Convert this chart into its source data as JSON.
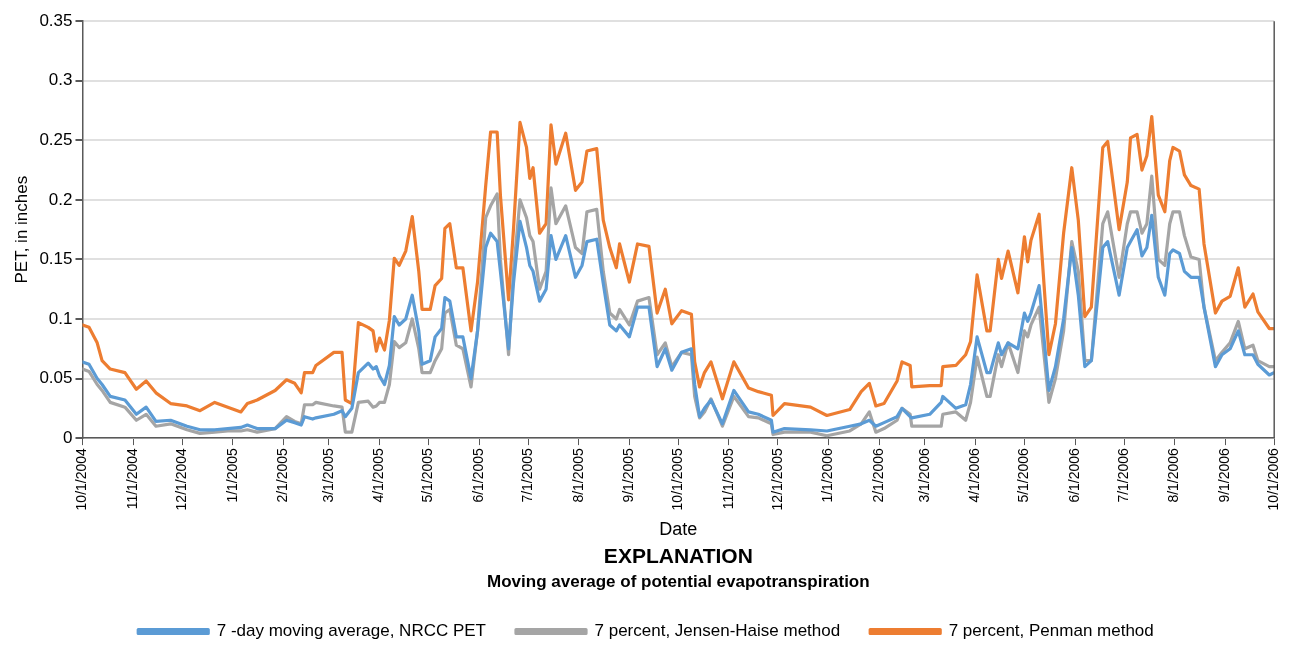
{
  "chart_data": {
    "type": "line",
    "xlabel": "Date",
    "ylabel": "PET, in inches",
    "legend_title": "EXPLANATION",
    "annotations": [
      "Moving average of potential evapotranspiration"
    ],
    "x": [
      "2004-10-01",
      "2004-10-05",
      "2004-10-10",
      "2004-10-13",
      "2004-10-18",
      "2004-10-27",
      "2004-11-03",
      "2004-11-09",
      "2004-11-15",
      "2004-11-24",
      "2004-12-04",
      "2004-12-12",
      "2004-12-21",
      "2004-12-29",
      "2005-01-06",
      "2005-01-10",
      "2005-01-16",
      "2005-01-27",
      "2005-02-03",
      "2005-02-08",
      "2005-02-12",
      "2005-02-14",
      "2005-02-19",
      "2005-02-21",
      "2005-03-04",
      "2005-03-09",
      "2005-03-11",
      "2005-03-15",
      "2005-03-19",
      "2005-03-25",
      "2005-03-28",
      "2005-03-30",
      "2005-04-01",
      "2005-04-04",
      "2005-04-07",
      "2005-04-10",
      "2005-04-13",
      "2005-04-17",
      "2005-04-21",
      "2005-04-25",
      "2005-04-27",
      "2005-05-02",
      "2005-05-05",
      "2005-05-09",
      "2005-05-11",
      "2005-05-14",
      "2005-05-18",
      "2005-05-22",
      "2005-05-27",
      "2005-05-31",
      "2005-06-05",
      "2005-06-08",
      "2005-06-12",
      "2005-06-14",
      "2005-06-19",
      "2005-06-22",
      "2005-06-26",
      "2005-06-30",
      "2005-07-02",
      "2005-07-04",
      "2005-07-08",
      "2005-07-12",
      "2005-07-15",
      "2005-07-18",
      "2005-07-24",
      "2005-07-30",
      "2005-08-03",
      "2005-08-06",
      "2005-08-12",
      "2005-08-16",
      "2005-08-20",
      "2005-08-24",
      "2005-08-26",
      "2005-09-01",
      "2005-09-06",
      "2005-09-13",
      "2005-09-18",
      "2005-09-23",
      "2005-09-27",
      "2005-10-03",
      "2005-10-09",
      "2005-10-11",
      "2005-10-14",
      "2005-10-17",
      "2005-10-21",
      "2005-10-28",
      "2005-11-04",
      "2005-11-13",
      "2005-11-19",
      "2005-11-27",
      "2005-11-28",
      "2005-12-05",
      "2005-12-21",
      "2005-12-31",
      "2006-01-14",
      "2006-01-21",
      "2006-01-26",
      "2006-01-30",
      "2006-02-04",
      "2006-02-12",
      "2006-02-15",
      "2006-02-20",
      "2006-02-21",
      "2006-03-04",
      "2006-03-11",
      "2006-03-12",
      "2006-03-20",
      "2006-03-26",
      "2006-03-29",
      "2006-04-02",
      "2006-04-08",
      "2006-04-10",
      "2006-04-15",
      "2006-04-17",
      "2006-04-21",
      "2006-04-27",
      "2006-05-01",
      "2006-05-03",
      "2006-05-05",
      "2006-05-10",
      "2006-05-16",
      "2006-05-20",
      "2006-05-25",
      "2006-05-30",
      "2006-06-03",
      "2006-06-07",
      "2006-06-11",
      "2006-06-18",
      "2006-06-21",
      "2006-06-28",
      "2006-07-03",
      "2006-07-05",
      "2006-07-09",
      "2006-07-12",
      "2006-07-15",
      "2006-07-18",
      "2006-07-22",
      "2006-07-26",
      "2006-07-29",
      "2006-07-31",
      "2006-08-04",
      "2006-08-07",
      "2006-08-11",
      "2006-08-16",
      "2006-08-19",
      "2006-08-26",
      "2006-08-30",
      "2006-09-04",
      "2006-09-09",
      "2006-09-13",
      "2006-09-18",
      "2006-09-21",
      "2006-09-28",
      "2006-10-01"
    ],
    "series": [
      {
        "name": "7 -day moving average, NRCC PET",
        "color": "#5b9bd5",
        "values": [
          0.064,
          0.062,
          0.05,
          0.045,
          0.035,
          0.032,
          0.02,
          0.026,
          0.014,
          0.015,
          0.01,
          0.007,
          0.007,
          0.008,
          0.009,
          0.011,
          0.008,
          0.008,
          0.015,
          0.013,
          0.011,
          0.018,
          0.016,
          0.017,
          0.02,
          0.023,
          0.018,
          0.025,
          0.055,
          0.063,
          0.058,
          0.06,
          0.052,
          0.045,
          0.061,
          0.102,
          0.095,
          0.1,
          0.12,
          0.09,
          0.062,
          0.065,
          0.085,
          0.092,
          0.118,
          0.115,
          0.085,
          0.085,
          0.05,
          0.09,
          0.16,
          0.172,
          0.165,
          0.14,
          0.075,
          0.13,
          0.182,
          0.16,
          0.145,
          0.14,
          0.115,
          0.125,
          0.17,
          0.15,
          0.17,
          0.135,
          0.145,
          0.165,
          0.167,
          0.13,
          0.095,
          0.09,
          0.095,
          0.085,
          0.11,
          0.11,
          0.06,
          0.075,
          0.057,
          0.072,
          0.075,
          0.045,
          0.018,
          0.025,
          0.032,
          0.012,
          0.04,
          0.022,
          0.02,
          0.015,
          0.005,
          0.008,
          0.007,
          0.006,
          0.01,
          0.012,
          0.015,
          0.01,
          0.013,
          0.018,
          0.025,
          0.018,
          0.017,
          0.02,
          0.03,
          0.035,
          0.025,
          0.028,
          0.045,
          0.085,
          0.055,
          0.055,
          0.08,
          0.07,
          0.08,
          0.075,
          0.105,
          0.098,
          0.105,
          0.128,
          0.04,
          0.06,
          0.1,
          0.16,
          0.12,
          0.06,
          0.065,
          0.16,
          0.165,
          0.12,
          0.16,
          0.165,
          0.175,
          0.153,
          0.16,
          0.187,
          0.135,
          0.12,
          0.155,
          0.158,
          0.155,
          0.14,
          0.135,
          0.135,
          0.11,
          0.06,
          0.07,
          0.075,
          0.09,
          0.07,
          0.07,
          0.062,
          0.053,
          0.055
        ]
      },
      {
        "name": "7 percent, Jensen-Haise method",
        "color": "#a5a5a5",
        "values": [
          0.058,
          0.056,
          0.045,
          0.04,
          0.03,
          0.026,
          0.015,
          0.02,
          0.01,
          0.012,
          0.007,
          0.004,
          0.005,
          0.006,
          0.006,
          0.007,
          0.005,
          0.008,
          0.018,
          0.014,
          0.012,
          0.028,
          0.028,
          0.03,
          0.027,
          0.026,
          0.005,
          0.005,
          0.03,
          0.031,
          0.026,
          0.027,
          0.03,
          0.03,
          0.045,
          0.081,
          0.076,
          0.08,
          0.1,
          0.075,
          0.055,
          0.055,
          0.065,
          0.075,
          0.105,
          0.108,
          0.078,
          0.075,
          0.043,
          0.09,
          0.185,
          0.195,
          0.205,
          0.15,
          0.07,
          0.14,
          0.2,
          0.185,
          0.17,
          0.165,
          0.125,
          0.14,
          0.21,
          0.18,
          0.195,
          0.16,
          0.155,
          0.19,
          0.192,
          0.14,
          0.105,
          0.1,
          0.108,
          0.095,
          0.115,
          0.118,
          0.07,
          0.08,
          0.06,
          0.072,
          0.07,
          0.035,
          0.017,
          0.022,
          0.033,
          0.01,
          0.035,
          0.018,
          0.017,
          0.012,
          0.003,
          0.005,
          0.005,
          0.002,
          0.006,
          0.012,
          0.022,
          0.005,
          0.008,
          0.015,
          0.025,
          0.02,
          0.01,
          0.01,
          0.01,
          0.02,
          0.022,
          0.015,
          0.03,
          0.068,
          0.035,
          0.035,
          0.07,
          0.06,
          0.08,
          0.055,
          0.09,
          0.085,
          0.095,
          0.11,
          0.03,
          0.05,
          0.09,
          0.165,
          0.14,
          0.065,
          0.065,
          0.18,
          0.19,
          0.135,
          0.18,
          0.19,
          0.19,
          0.172,
          0.18,
          0.22,
          0.15,
          0.145,
          0.18,
          0.19,
          0.19,
          0.17,
          0.152,
          0.15,
          0.11,
          0.065,
          0.072,
          0.08,
          0.098,
          0.075,
          0.078,
          0.065,
          0.06,
          0.06
        ]
      },
      {
        "name": "7 percent, Penman method",
        "color": "#ed7d31",
        "values": [
          0.095,
          0.093,
          0.08,
          0.065,
          0.058,
          0.055,
          0.041,
          0.048,
          0.038,
          0.029,
          0.027,
          0.023,
          0.03,
          0.026,
          0.022,
          0.029,
          0.032,
          0.04,
          0.049,
          0.046,
          0.038,
          0.055,
          0.055,
          0.061,
          0.072,
          0.072,
          0.032,
          0.029,
          0.097,
          0.093,
          0.09,
          0.073,
          0.084,
          0.074,
          0.099,
          0.151,
          0.145,
          0.157,
          0.186,
          0.14,
          0.108,
          0.108,
          0.128,
          0.134,
          0.176,
          0.18,
          0.143,
          0.143,
          0.09,
          0.131,
          0.212,
          0.257,
          0.257,
          0.204,
          0.116,
          0.175,
          0.265,
          0.244,
          0.218,
          0.227,
          0.172,
          0.18,
          0.263,
          0.23,
          0.256,
          0.208,
          0.215,
          0.241,
          0.243,
          0.183,
          0.16,
          0.143,
          0.163,
          0.131,
          0.163,
          0.161,
          0.105,
          0.125,
          0.096,
          0.107,
          0.104,
          0.064,
          0.043,
          0.055,
          0.064,
          0.033,
          0.064,
          0.042,
          0.039,
          0.036,
          0.019,
          0.029,
          0.026,
          0.019,
          0.024,
          0.039,
          0.046,
          0.027,
          0.029,
          0.048,
          0.064,
          0.061,
          0.043,
          0.044,
          0.044,
          0.06,
          0.061,
          0.07,
          0.081,
          0.137,
          0.09,
          0.09,
          0.15,
          0.134,
          0.157,
          0.122,
          0.169,
          0.148,
          0.166,
          0.188,
          0.07,
          0.096,
          0.172,
          0.227,
          0.183,
          0.102,
          0.11,
          0.244,
          0.249,
          0.175,
          0.215,
          0.252,
          0.255,
          0.225,
          0.237,
          0.27,
          0.204,
          0.19,
          0.233,
          0.244,
          0.241,
          0.221,
          0.212,
          0.209,
          0.163,
          0.105,
          0.115,
          0.119,
          0.143,
          0.11,
          0.121,
          0.106,
          0.092,
          0.092
        ]
      }
    ],
    "xlim": [
      "2004-10-01",
      "2006-10-01"
    ],
    "xticks": [
      {
        "value": "2004-10-01",
        "label": "10/1/2004"
      },
      {
        "value": "2004-11-01",
        "label": "11/1/2004"
      },
      {
        "value": "2004-12-01",
        "label": "12/1/2004"
      },
      {
        "value": "2005-01-01",
        "label": "1/1/2005"
      },
      {
        "value": "2005-02-01",
        "label": "2/1/2005"
      },
      {
        "value": "2005-03-01",
        "label": "3/1/2005"
      },
      {
        "value": "2005-04-01",
        "label": "4/1/2005"
      },
      {
        "value": "2005-05-01",
        "label": "5/1/2005"
      },
      {
        "value": "2005-06-01",
        "label": "6/1/2005"
      },
      {
        "value": "2005-07-01",
        "label": "7/1/2005"
      },
      {
        "value": "2005-08-01",
        "label": "8/1/2005"
      },
      {
        "value": "2005-09-01",
        "label": "9/1/2005"
      },
      {
        "value": "2005-10-01",
        "label": "10/1/2005"
      },
      {
        "value": "2005-11-01",
        "label": "11/1/2005"
      },
      {
        "value": "2005-12-01",
        "label": "12/1/2005"
      },
      {
        "value": "2006-01-01",
        "label": "1/1/2006"
      },
      {
        "value": "2006-02-01",
        "label": "2/1/2006"
      },
      {
        "value": "2006-03-01",
        "label": "3/1/2006"
      },
      {
        "value": "2006-04-01",
        "label": "4/1/2006"
      },
      {
        "value": "2006-05-01",
        "label": "5/1/2006"
      },
      {
        "value": "2006-06-01",
        "label": "6/1/2006"
      },
      {
        "value": "2006-07-01",
        "label": "7/1/2006"
      },
      {
        "value": "2006-08-01",
        "label": "8/1/2006"
      },
      {
        "value": "2006-09-01",
        "label": "9/1/2006"
      },
      {
        "value": "2006-10-01",
        "label": "10/1/2006"
      }
    ],
    "ylim": [
      0,
      0.35
    ],
    "yticks": [
      0,
      0.05,
      0.1,
      0.15,
      0.2,
      0.25,
      0.3,
      0.35
    ],
    "grid": "y",
    "legend": "bottom",
    "marker": "none",
    "line_style": "solid"
  }
}
